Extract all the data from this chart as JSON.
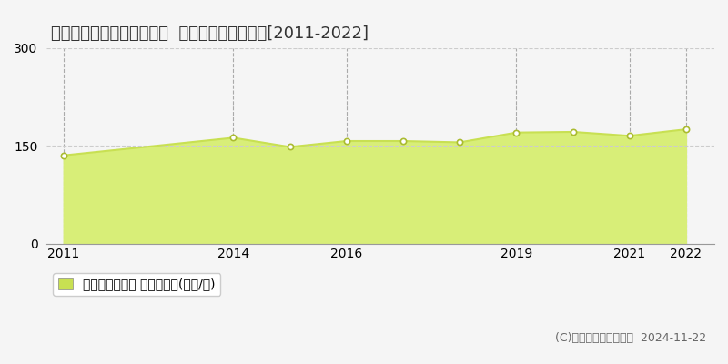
{
  "title": "京都市右京区太秦下刑部町  マンション価格推移[2011-2022]",
  "years": [
    2011,
    2014,
    2015,
    2016,
    2017,
    2018,
    2019,
    2020,
    2021,
    2022
  ],
  "values": [
    135,
    162,
    148,
    157,
    157,
    155,
    170,
    171,
    165,
    175
  ],
  "ylim": [
    0,
    300
  ],
  "yticks": [
    0,
    150,
    300
  ],
  "xlim": [
    2010.7,
    2022.5
  ],
  "xtick_years": [
    2011,
    2014,
    2016,
    2019,
    2021,
    2022
  ],
  "vgrid_years": [
    2011,
    2014,
    2016,
    2019,
    2021,
    2022
  ],
  "line_color": "#c8e052",
  "fill_color": "#d8ee78",
  "marker_color": "#ffffff",
  "marker_edge_color": "#aabb30",
  "hgrid_color": "#cccccc",
  "vgrid_color": "#aaaaaa",
  "bg_color": "#f5f5f5",
  "legend_label": "マンション価格 平均坪単価(万円/坪)",
  "legend_marker_color": "#c8e052",
  "copyright_text": "(C)土地価格ドットコム  2024-11-22",
  "title_fontsize": 13,
  "axis_fontsize": 10,
  "legend_fontsize": 10,
  "copyright_fontsize": 9
}
